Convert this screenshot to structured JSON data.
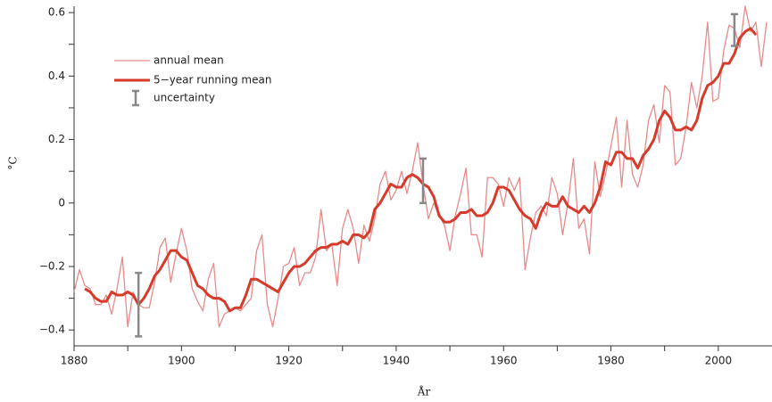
{
  "chart_data": {
    "type": "line",
    "x_label": "År",
    "y_label": "°C",
    "x": [
      1880,
      1881,
      1882,
      1883,
      1884,
      1885,
      1886,
      1887,
      1888,
      1889,
      1890,
      1891,
      1892,
      1893,
      1894,
      1895,
      1896,
      1897,
      1898,
      1899,
      1900,
      1901,
      1902,
      1903,
      1904,
      1905,
      1906,
      1907,
      1908,
      1909,
      1910,
      1911,
      1912,
      1913,
      1914,
      1915,
      1916,
      1917,
      1918,
      1919,
      1920,
      1921,
      1922,
      1923,
      1924,
      1925,
      1926,
      1927,
      1928,
      1929,
      1930,
      1931,
      1932,
      1933,
      1934,
      1935,
      1936,
      1937,
      1938,
      1939,
      1940,
      1941,
      1942,
      1943,
      1944,
      1945,
      1946,
      1947,
      1948,
      1949,
      1950,
      1951,
      1952,
      1953,
      1954,
      1955,
      1956,
      1957,
      1958,
      1959,
      1960,
      1961,
      1962,
      1963,
      1964,
      1965,
      1966,
      1967,
      1968,
      1969,
      1970,
      1971,
      1972,
      1973,
      1974,
      1975,
      1976,
      1977,
      1978,
      1979,
      1980,
      1981,
      1982,
      1983,
      1984,
      1985,
      1986,
      1987,
      1988,
      1989,
      1990,
      1991,
      1992,
      1993,
      1994,
      1995,
      1996,
      1997,
      1998,
      1999,
      2000,
      2001,
      2002,
      2003,
      2004,
      2005,
      2006,
      2007,
      2008,
      2009
    ],
    "series": [
      {
        "name": "annual mean",
        "color": "#e88a8a",
        "width": 1.3,
        "values": [
          -0.28,
          -0.21,
          -0.26,
          -0.27,
          -0.32,
          -0.32,
          -0.29,
          -0.35,
          -0.27,
          -0.17,
          -0.39,
          -0.28,
          -0.32,
          -0.33,
          -0.33,
          -0.25,
          -0.14,
          -0.11,
          -0.25,
          -0.16,
          -0.08,
          -0.15,
          -0.27,
          -0.31,
          -0.34,
          -0.24,
          -0.19,
          -0.39,
          -0.35,
          -0.34,
          -0.33,
          -0.34,
          -0.32,
          -0.3,
          -0.15,
          -0.1,
          -0.32,
          -0.39,
          -0.3,
          -0.2,
          -0.19,
          -0.14,
          -0.26,
          -0.22,
          -0.22,
          -0.17,
          -0.02,
          -0.15,
          -0.13,
          -0.26,
          -0.08,
          -0.02,
          -0.08,
          -0.19,
          -0.07,
          -0.12,
          -0.05,
          0.06,
          0.1,
          0.01,
          0.04,
          0.1,
          0.03,
          0.1,
          0.19,
          0.06,
          -0.05,
          0.0,
          -0.04,
          -0.07,
          -0.15,
          -0.04,
          0.03,
          0.11,
          -0.1,
          -0.1,
          -0.17,
          0.08,
          0.08,
          0.06,
          -0.01,
          0.08,
          0.04,
          0.08,
          -0.21,
          -0.11,
          -0.03,
          -0.01,
          -0.04,
          0.08,
          0.03,
          -0.1,
          0.0,
          0.14,
          -0.08,
          -0.05,
          -0.16,
          0.13,
          0.02,
          0.09,
          0.18,
          0.27,
          0.05,
          0.26,
          0.09,
          0.05,
          0.12,
          0.26,
          0.31,
          0.19,
          0.37,
          0.35,
          0.12,
          0.14,
          0.24,
          0.38,
          0.3,
          0.4,
          0.57,
          0.32,
          0.33,
          0.48,
          0.56,
          0.55,
          0.49,
          0.62,
          0.54,
          0.57,
          0.43,
          0.57
        ]
      },
      {
        "name": "5−year running mean",
        "color": "#d63a2a",
        "width": 3,
        "values": [
          null,
          null,
          -0.27,
          -0.28,
          -0.3,
          -0.31,
          -0.31,
          -0.28,
          -0.29,
          -0.29,
          -0.28,
          -0.29,
          -0.32,
          -0.3,
          -0.27,
          -0.23,
          -0.21,
          -0.18,
          -0.15,
          -0.15,
          -0.17,
          -0.18,
          -0.22,
          -0.26,
          -0.27,
          -0.29,
          -0.3,
          -0.3,
          -0.31,
          -0.34,
          -0.33,
          -0.33,
          -0.29,
          -0.24,
          -0.24,
          -0.25,
          -0.26,
          -0.27,
          -0.28,
          -0.25,
          -0.22,
          -0.2,
          -0.2,
          -0.19,
          -0.17,
          -0.15,
          -0.14,
          -0.14,
          -0.13,
          -0.13,
          -0.12,
          -0.13,
          -0.1,
          -0.1,
          -0.11,
          -0.09,
          -0.02,
          0.0,
          0.03,
          0.06,
          0.05,
          0.05,
          0.08,
          0.09,
          0.08,
          0.06,
          0.05,
          0.02,
          -0.04,
          -0.06,
          -0.06,
          -0.05,
          -0.03,
          -0.03,
          -0.02,
          -0.04,
          -0.04,
          -0.03,
          0.0,
          0.05,
          0.05,
          0.04,
          0.01,
          -0.02,
          -0.04,
          -0.05,
          -0.08,
          -0.03,
          0.0,
          -0.01,
          -0.01,
          0.02,
          -0.01,
          -0.02,
          -0.03,
          -0.01,
          -0.03,
          0.0,
          0.05,
          0.13,
          0.12,
          0.16,
          0.16,
          0.14,
          0.14,
          0.11,
          0.15,
          0.17,
          0.2,
          0.26,
          0.29,
          0.27,
          0.23,
          0.23,
          0.24,
          0.23,
          0.26,
          0.33,
          0.37,
          0.38,
          0.4,
          0.44,
          0.44,
          0.47,
          0.52,
          0.54,
          0.55,
          0.53,
          null,
          null
        ]
      }
    ],
    "error_bars": {
      "name": "uncertainty",
      "color": "#888888",
      "x": [
        1892,
        1945,
        2003
      ],
      "values": [
        -0.32,
        0.07,
        0.545
      ],
      "errors": [
        0.1,
        0.07,
        0.05
      ]
    },
    "xlim": [
      1880,
      2010
    ],
    "ylim": [
      -0.45,
      0.62
    ],
    "xticks": [
      1880,
      1900,
      1920,
      1940,
      1960,
      1980,
      2000
    ],
    "xminorticks": [
      1890,
      1910,
      1930,
      1950,
      1970,
      1990
    ],
    "yticks": [
      {
        "value": -0.4,
        "label": "−0.4"
      },
      {
        "value": -0.2,
        "label": "−0.2"
      },
      0,
      0.2,
      0.4,
      0.6
    ],
    "yminorticks": [
      -0.3,
      -0.1,
      0.1,
      0.3,
      0.5
    ],
    "legend": "upper left",
    "grid": false
  }
}
